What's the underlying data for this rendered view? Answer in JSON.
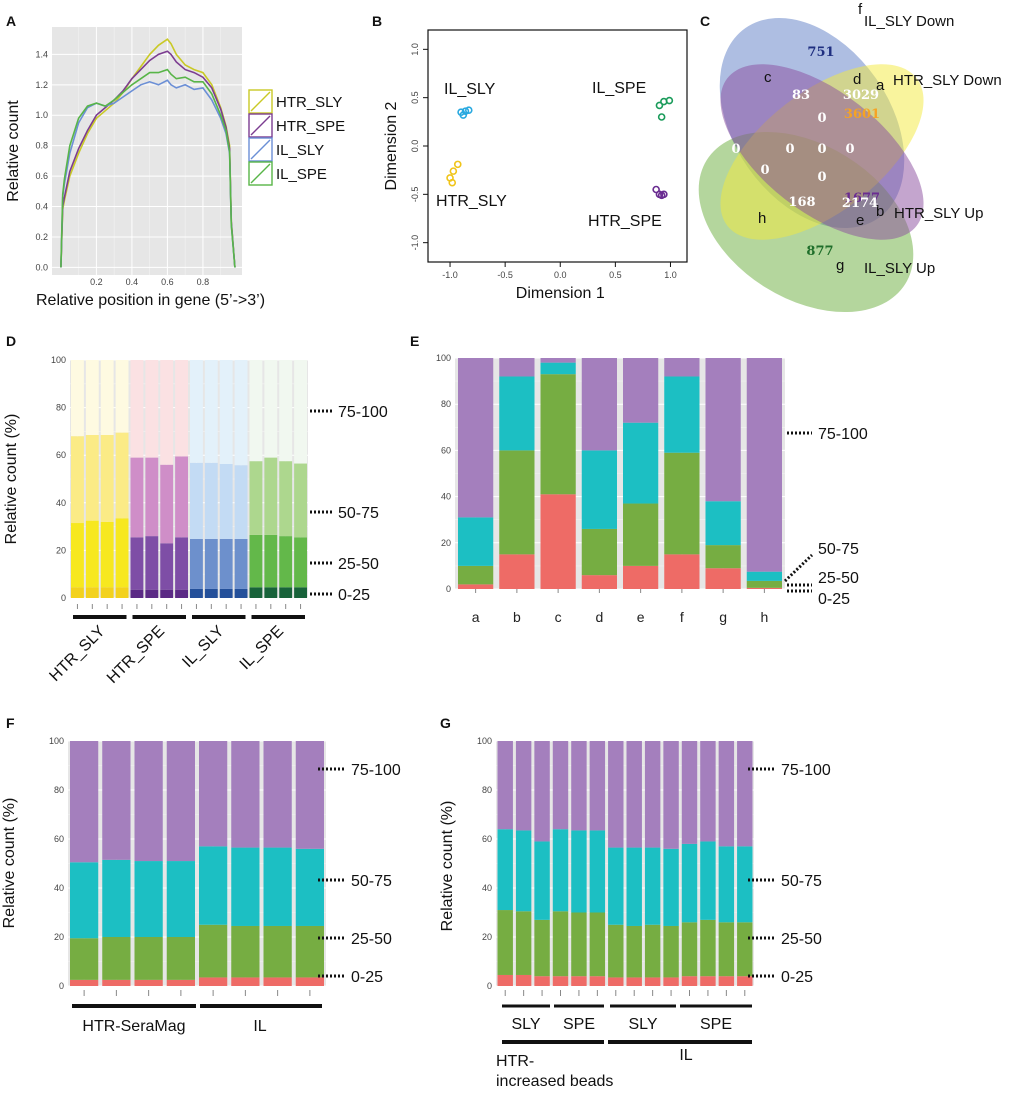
{
  "panel_labels": [
    "A",
    "B",
    "C",
    "D",
    "E",
    "F",
    "G"
  ],
  "colors": {
    "purple": "#a47fbd",
    "cyan": "#1cbfc3",
    "green": "#76ad42",
    "red": "#ee6b66",
    "panel_bg": "#e6e6e6"
  },
  "chart_data": [
    {
      "id": "A",
      "type": "line",
      "xlabel": "Relative position in gene (5’->3’)",
      "ylabel": "Relative count",
      "x_ticks": [
        "0.2",
        "0.4",
        "0.6",
        "0.8"
      ],
      "y_ticks": [
        "0.0",
        "0.2",
        "0.4",
        "0.6",
        "0.8",
        "1.0",
        "1.2",
        "1.4"
      ],
      "xlim": [
        -0.05,
        1.02
      ],
      "ylim": [
        -0.05,
        1.58
      ],
      "legend": [
        "HTR_SLY",
        "HTR_SPE",
        "IL_SLY",
        "IL_SPE"
      ],
      "series": [
        {
          "name": "HTR_SLY",
          "color": "#c9c926",
          "x": [
            0,
            0.01,
            0.02,
            0.05,
            0.1,
            0.15,
            0.2,
            0.25,
            0.3,
            0.35,
            0.4,
            0.45,
            0.5,
            0.55,
            0.6,
            0.62,
            0.65,
            0.7,
            0.75,
            0.8,
            0.85,
            0.9,
            0.93,
            0.95,
            0.96,
            0.98
          ],
          "y": [
            0,
            0.38,
            0.44,
            0.6,
            0.75,
            0.88,
            0.98,
            1.03,
            1.08,
            1.15,
            1.24,
            1.32,
            1.4,
            1.46,
            1.5,
            1.47,
            1.4,
            1.33,
            1.3,
            1.28,
            1.2,
            1.05,
            0.93,
            0.8,
            0.3,
            0
          ]
        },
        {
          "name": "HTR_SPE",
          "color": "#7c3d91",
          "x": [
            0,
            0.01,
            0.02,
            0.05,
            0.1,
            0.15,
            0.2,
            0.25,
            0.3,
            0.35,
            0.4,
            0.45,
            0.5,
            0.55,
            0.6,
            0.62,
            0.65,
            0.7,
            0.75,
            0.8,
            0.85,
            0.9,
            0.93,
            0.95,
            0.96,
            0.98
          ],
          "y": [
            0,
            0.4,
            0.46,
            0.63,
            0.78,
            0.9,
            1.0,
            1.05,
            1.1,
            1.16,
            1.24,
            1.3,
            1.36,
            1.4,
            1.42,
            1.4,
            1.35,
            1.3,
            1.28,
            1.25,
            1.18,
            1.04,
            0.92,
            0.78,
            0.3,
            0
          ]
        },
        {
          "name": "IL_SLY",
          "color": "#6b8fd6",
          "x": [
            0,
            0.01,
            0.02,
            0.05,
            0.1,
            0.15,
            0.2,
            0.25,
            0.3,
            0.35,
            0.4,
            0.45,
            0.5,
            0.55,
            0.6,
            0.62,
            0.65,
            0.7,
            0.75,
            0.8,
            0.85,
            0.9,
            0.93,
            0.95,
            0.96,
            0.98
          ],
          "y": [
            0,
            0.46,
            0.55,
            0.75,
            0.95,
            1.05,
            1.08,
            1.06,
            1.08,
            1.12,
            1.16,
            1.2,
            1.22,
            1.2,
            1.23,
            1.2,
            1.18,
            1.2,
            1.17,
            1.18,
            1.1,
            0.98,
            0.88,
            0.75,
            0.28,
            0
          ]
        },
        {
          "name": "IL_SPE",
          "color": "#58b548",
          "x": [
            0,
            0.01,
            0.02,
            0.05,
            0.1,
            0.15,
            0.2,
            0.25,
            0.3,
            0.35,
            0.4,
            0.45,
            0.5,
            0.55,
            0.6,
            0.62,
            0.65,
            0.7,
            0.75,
            0.8,
            0.85,
            0.9,
            0.93,
            0.95,
            0.96,
            0.98
          ],
          "y": [
            0,
            0.48,
            0.58,
            0.8,
            0.98,
            1.06,
            1.08,
            1.06,
            1.1,
            1.15,
            1.2,
            1.24,
            1.28,
            1.28,
            1.3,
            1.27,
            1.24,
            1.25,
            1.22,
            1.22,
            1.14,
            1.0,
            0.9,
            0.76,
            0.28,
            0
          ]
        }
      ]
    },
    {
      "id": "B",
      "type": "scatter",
      "xlabel": "Dimension 1",
      "ylabel": "Dimension 2",
      "x_ticks": [
        "-1.0",
        "-0.5",
        "0.0",
        "0.5",
        "1.0"
      ],
      "y_ticks": [
        "-1.0",
        "-0.5",
        "0.0",
        "0.5",
        "1.0"
      ],
      "xlim": [
        -1.2,
        1.15
      ],
      "ylim": [
        -1.2,
        1.2
      ],
      "groups": [
        {
          "name": "IL_SLY",
          "color": "#29a9e0",
          "points": [
            [
              -0.88,
              0.32
            ],
            [
              -0.86,
              0.36
            ],
            [
              -0.83,
              0.37
            ],
            [
              -0.9,
              0.35
            ]
          ]
        },
        {
          "name": "HTR_SLY",
          "color": "#f0c419",
          "points": [
            [
              -1.0,
              -0.33
            ],
            [
              -0.97,
              -0.26
            ],
            [
              -0.93,
              -0.19
            ],
            [
              -0.98,
              -0.38
            ]
          ]
        },
        {
          "name": "IL_SPE",
          "color": "#1a9b5a",
          "points": [
            [
              0.9,
              0.42
            ],
            [
              0.94,
              0.46
            ],
            [
              0.99,
              0.47
            ],
            [
              0.92,
              0.3
            ]
          ]
        },
        {
          "name": "HTR_SPE",
          "color": "#6a2c91",
          "points": [
            [
              0.87,
              -0.45
            ],
            [
              0.9,
              -0.5
            ],
            [
              0.92,
              -0.51
            ],
            [
              0.94,
              -0.5
            ]
          ]
        }
      ]
    },
    {
      "id": "C",
      "type": "venn",
      "sets": [
        "IL_SLY Down",
        "HTR_SLY Down",
        "HTR_SLY Up",
        "IL_SLY Up"
      ],
      "regions": [
        {
          "letter": "f",
          "value": "751",
          "color": "#1f2f80"
        },
        {
          "letter": "c",
          "value": "83",
          "color": "#ffffff"
        },
        {
          "letter": "d",
          "value": "3029",
          "color": "#ffffff"
        },
        {
          "letter": "a",
          "value": "3601",
          "color": "#f6a323"
        },
        {
          "letter": "",
          "value": "0",
          "color": "#ffffff"
        },
        {
          "letter": "",
          "value": "0",
          "color": "#ffffff"
        },
        {
          "letter": "",
          "value": "0",
          "color": "#ffffff"
        },
        {
          "letter": "",
          "value": "0",
          "color": "#ffffff"
        },
        {
          "letter": "",
          "value": "0",
          "color": "#ffffff"
        },
        {
          "letter": "",
          "value": "0",
          "color": "#ffffff"
        },
        {
          "letter": "",
          "value": "0",
          "color": "#ffffff"
        },
        {
          "letter": "b",
          "value": "1677",
          "color": "#6a2c91"
        },
        {
          "letter": "h",
          "value": "168",
          "color": "#ffffff"
        },
        {
          "letter": "e",
          "value": "2174",
          "color": "#ffffff"
        },
        {
          "letter": "g",
          "value": "877",
          "color": "#1f6e2a"
        }
      ]
    },
    {
      "id": "D",
      "type": "bar",
      "stacked": true,
      "ylabel": "Relative count (%)",
      "y_ticks": [
        "0",
        "20",
        "40",
        "60",
        "80",
        "100"
      ],
      "ylim": [
        0,
        100
      ],
      "groups": [
        "HTR_SLY",
        "HTR_SPE",
        "IL_SLY",
        "IL_SPE"
      ],
      "bands": [
        "0-25",
        "25-50",
        "50-75",
        "75-100"
      ],
      "series": [
        {
          "name": "0-25",
          "values": [
            4.5,
            4.5,
            4.5,
            4.5,
            3.5,
            3.5,
            3.5,
            3.5,
            3.8,
            3.8,
            3.8,
            3.8,
            4.5,
            4.5,
            4.5,
            4.5
          ]
        },
        {
          "name": "25-50",
          "values": [
            27,
            28,
            27.5,
            29,
            22,
            22.5,
            19.5,
            22,
            21,
            21,
            21,
            21,
            22,
            22,
            21.5,
            21
          ]
        },
        {
          "name": "50-75",
          "values": [
            36.5,
            36,
            36.5,
            36,
            33.5,
            33,
            33,
            34,
            32,
            32,
            31.5,
            31,
            31,
            32.5,
            31.5,
            31
          ]
        },
        {
          "name": "75-100",
          "values": [
            32,
            31.5,
            31.5,
            30.5,
            41,
            41,
            44,
            40.5,
            43.2,
            43.2,
            43.7,
            44.2,
            42.5,
            41,
            42.5,
            43.5
          ]
        }
      ],
      "palette": [
        [
          "#f3d21e",
          "#f7e81f",
          "#fbeb86",
          "#fefae1"
        ],
        [
          "#5b2a85",
          "#7e4ea6",
          "#cf8ec8",
          "#fbe1e3"
        ],
        [
          "#24509a",
          "#6d90cc",
          "#c3dbf4",
          "#e3f1fa"
        ],
        [
          "#18633a",
          "#63b84a",
          "#add78e",
          "#f1f8f0"
        ]
      ]
    },
    {
      "id": "E",
      "type": "bar",
      "stacked": true,
      "y_ticks": [
        "0",
        "20",
        "40",
        "60",
        "80",
        "100"
      ],
      "ylim": [
        0,
        100
      ],
      "categories": [
        "a",
        "b",
        "c",
        "d",
        "e",
        "f",
        "g",
        "h"
      ],
      "bands": [
        "0-25",
        "25-50",
        "50-75",
        "75-100"
      ],
      "series": [
        {
          "name": "0-25",
          "values": [
            2,
            15,
            41,
            6,
            10,
            15,
            9,
            0.5
          ]
        },
        {
          "name": "25-50",
          "values": [
            8,
            45,
            52,
            20,
            27,
            44,
            10,
            3
          ]
        },
        {
          "name": "50-75",
          "values": [
            21,
            32,
            5,
            34,
            35,
            33,
            19,
            4
          ]
        },
        {
          "name": "75-100",
          "values": [
            69,
            8,
            2,
            40,
            28,
            8,
            62,
            92.5
          ]
        }
      ]
    },
    {
      "id": "F",
      "type": "bar",
      "stacked": true,
      "ylabel": "Relative count (%)",
      "y_ticks": [
        "0",
        "20",
        "40",
        "60",
        "80",
        "100"
      ],
      "ylim": [
        0,
        100
      ],
      "groups": [
        "HTR-SeraMag",
        "IL"
      ],
      "bands": [
        "0-25",
        "25-50",
        "50-75",
        "75-100"
      ],
      "series": [
        {
          "name": "0-25",
          "values": [
            2.5,
            2.5,
            2.5,
            2.5,
            3.5,
            3.5,
            3.5,
            3.5
          ]
        },
        {
          "name": "25-50",
          "values": [
            17,
            17.5,
            17.5,
            17.5,
            21.5,
            21,
            21,
            21
          ]
        },
        {
          "name": "50-75",
          "values": [
            31,
            31.5,
            31,
            31,
            32,
            32,
            32,
            31.5
          ]
        },
        {
          "name": "75-100",
          "values": [
            49.5,
            48.5,
            49,
            49,
            43,
            43.5,
            43.5,
            44
          ]
        }
      ]
    },
    {
      "id": "G",
      "type": "bar",
      "stacked": true,
      "ylabel": "Relative count (%)",
      "y_ticks": [
        "0",
        "20",
        "40",
        "60",
        "80",
        "100"
      ],
      "ylim": [
        0,
        100
      ],
      "subgroups": [
        "SLY",
        "SPE",
        "SLY",
        "SPE"
      ],
      "groups": [
        "HTR-\nincreased beads",
        "IL"
      ],
      "group_line1": "HTR-",
      "group_line2": "increased beads",
      "bands": [
        "0-25",
        "25-50",
        "50-75",
        "75-100"
      ],
      "series": [
        {
          "name": "0-25",
          "values": [
            4.5,
            4.5,
            4,
            4,
            4,
            4,
            3.5,
            3.5,
            3.5,
            3.5,
            4,
            4,
            4,
            4
          ]
        },
        {
          "name": "25-50",
          "values": [
            26.5,
            26,
            23,
            26.5,
            26,
            26,
            21.5,
            21,
            21.5,
            21,
            22,
            23,
            22,
            22
          ]
        },
        {
          "name": "50-75",
          "values": [
            33,
            33,
            32,
            33.5,
            33.5,
            33.5,
            31.5,
            32,
            31.5,
            31.5,
            32,
            32,
            31,
            31
          ]
        },
        {
          "name": "75-100",
          "values": [
            36,
            36.5,
            41,
            36,
            36.5,
            36.5,
            43.5,
            43.5,
            43.5,
            44,
            42,
            41,
            43,
            43
          ]
        }
      ]
    }
  ]
}
